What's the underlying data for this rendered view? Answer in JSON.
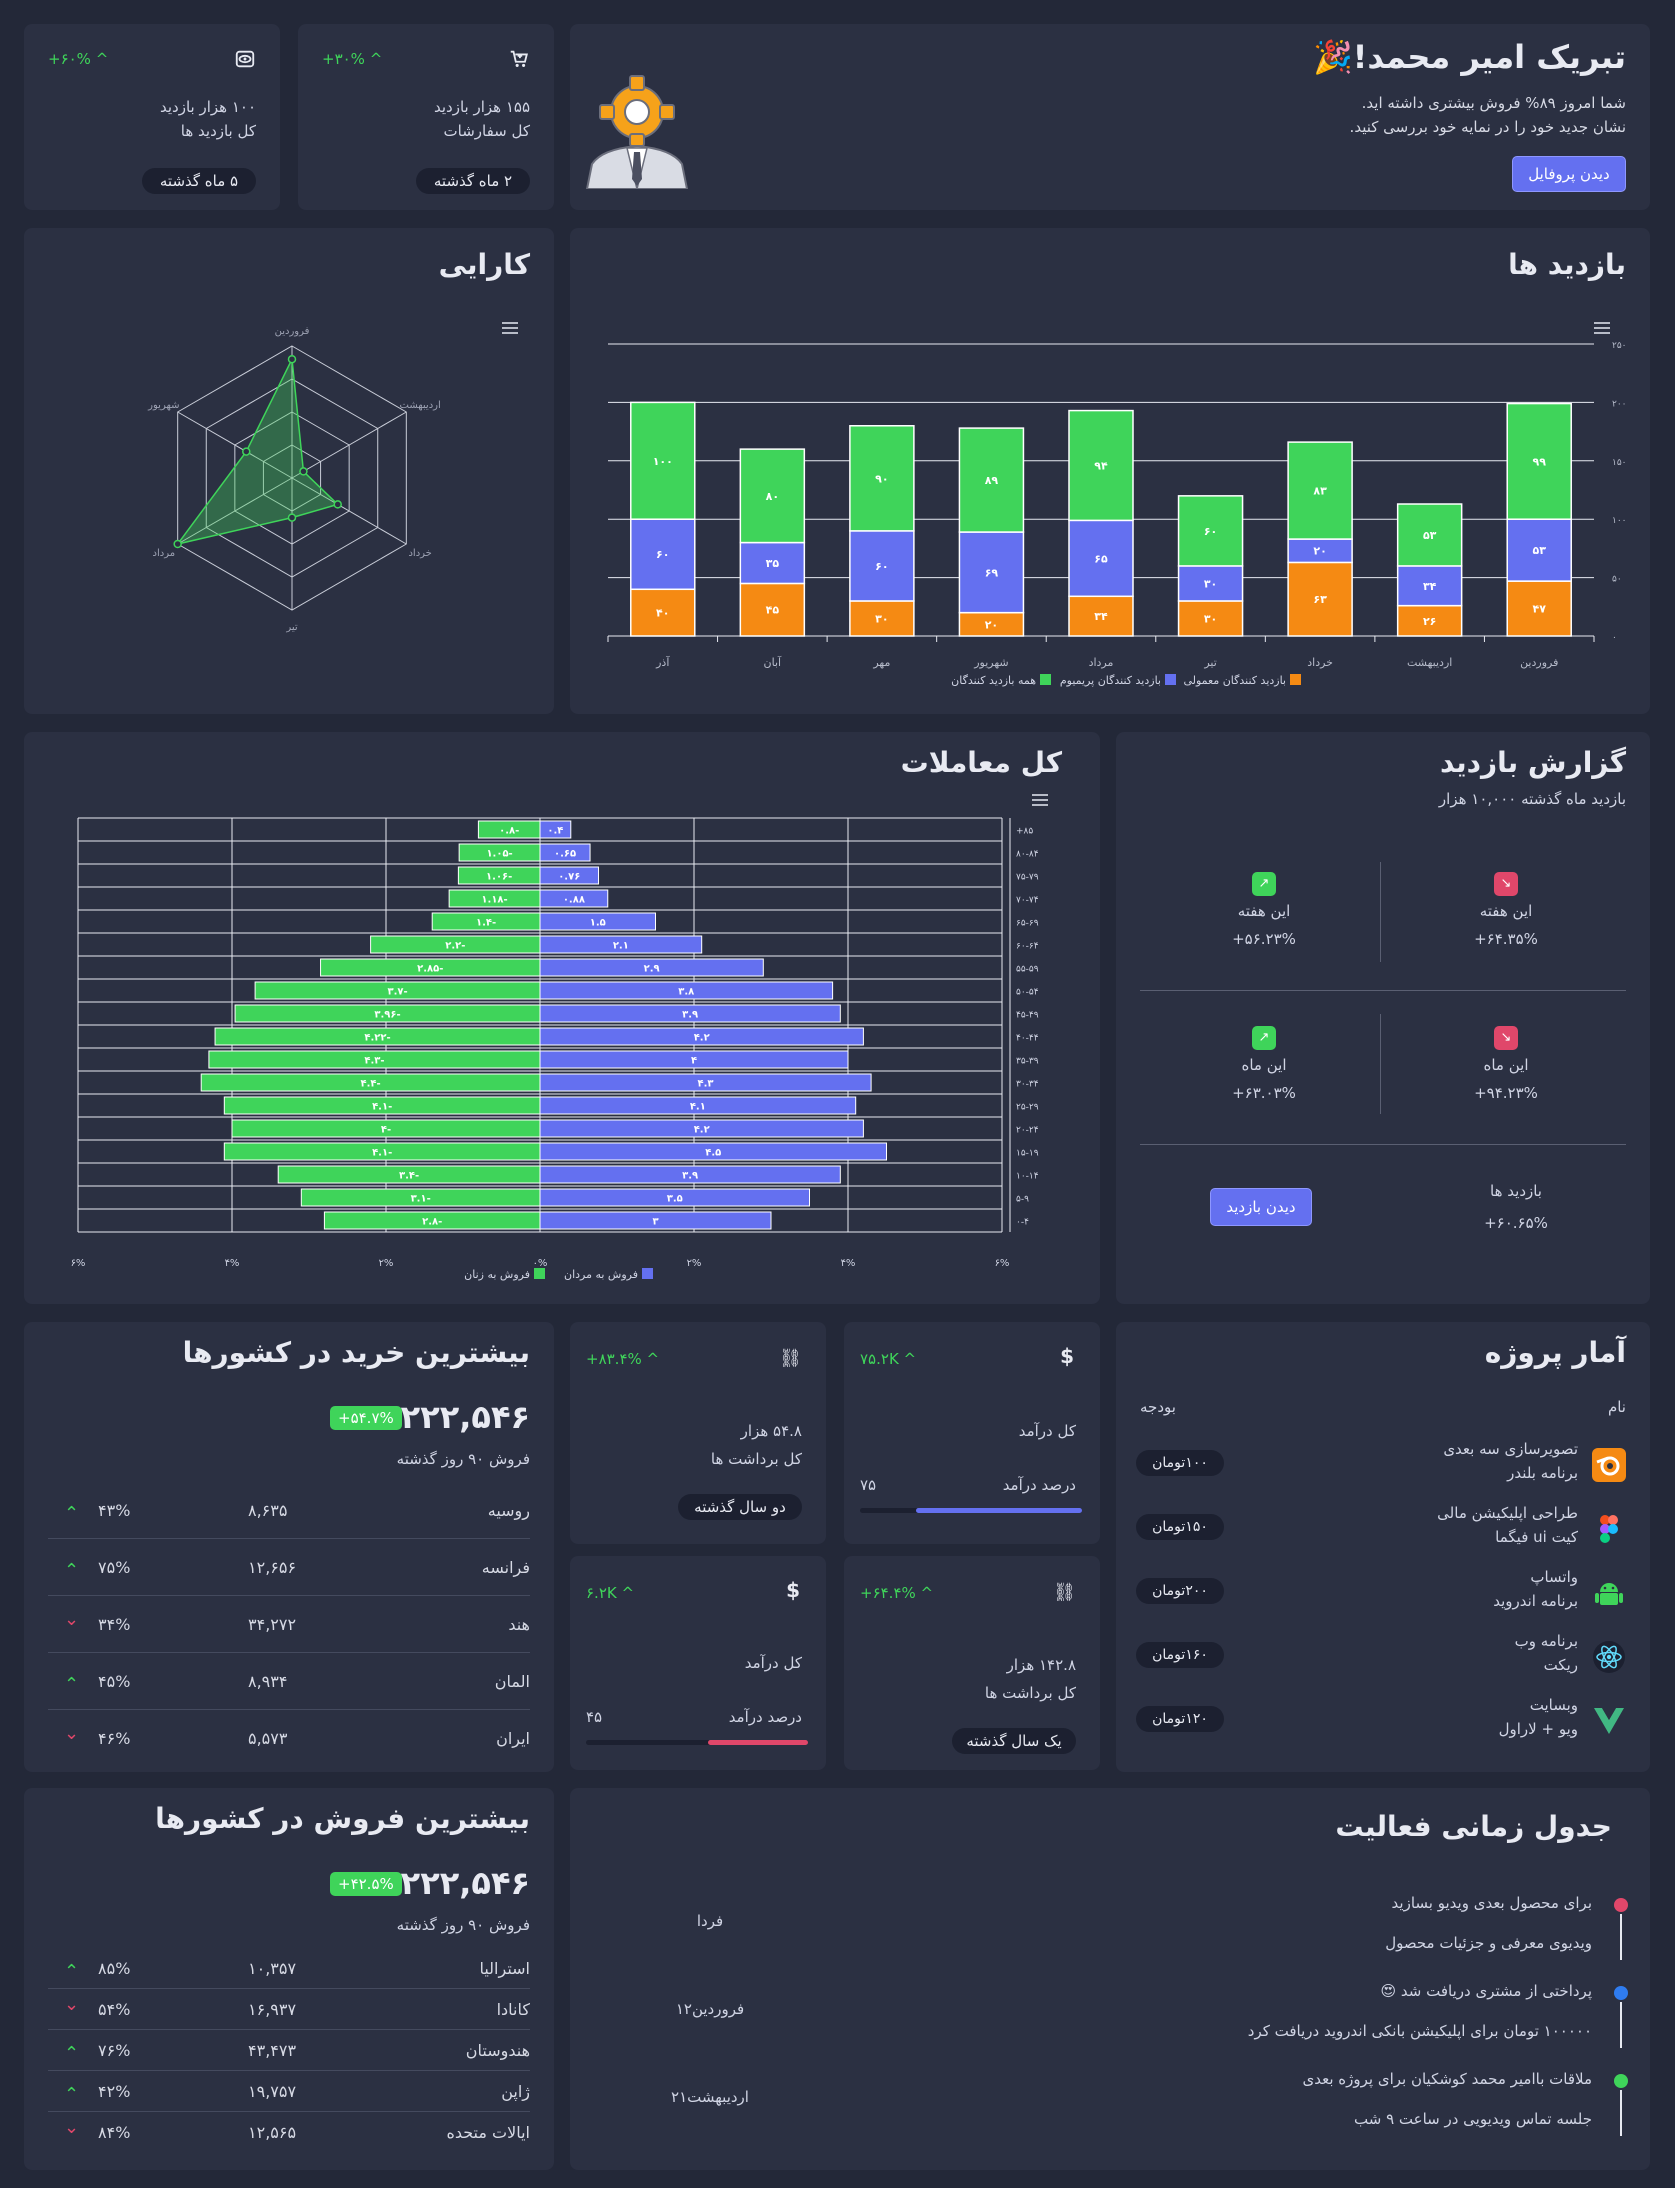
{
  "welcome": {
    "title": "تبریک امیر محمد!🎉",
    "line1": "شما امروز ۸۹% فروش بیشتری داشته اید.",
    "line2": "نشان جدید خود را در نمایه خود بررسی کنید.",
    "button": "دیدن پروفایل"
  },
  "stat_orders": {
    "change": "+۳۰% ^",
    "value": "۱۵۵ هزار بازدید",
    "label": "کل سفارشات",
    "pill": "۲ ماه گذشته",
    "icon": "cart-icon"
  },
  "stat_visits": {
    "change": "+۶۰% ^",
    "value": "۱۰۰ هزار بازدید",
    "label": "کل بازدید ها",
    "pill": "۵ ماه گذشته",
    "icon": "eye-icon"
  },
  "performance": {
    "title": "کارایی"
  },
  "visits": {
    "title": "بازدید ها"
  },
  "transactions": {
    "title": "کل معاملات"
  },
  "report": {
    "title": "گزارش بازدید",
    "subtitle": "بازدید ماه گذشته ۱۰,۰۰۰ هزار",
    "cells": [
      {
        "label": "این هفته",
        "value": "+۶۴.۳۵%",
        "trend": "down"
      },
      {
        "label": "این هفته",
        "value": "+۵۶.۲۳%",
        "trend": "up"
      },
      {
        "label": "این ماه",
        "value": "+۹۴.۲۳%",
        "trend": "down"
      },
      {
        "label": "این ماه",
        "value": "+۶۳.۰۳%",
        "trend": "up"
      }
    ],
    "bottom_label": "بازدید ها",
    "bottom_value": "+۶۰.۶۵%",
    "button": "دیدن بازدید"
  },
  "buy_countries": {
    "title": "بیشترین خرید در کشورها",
    "total": "۲۲۲,۵۴۶",
    "badge": "+۵۴.۷%",
    "period": "فروش ۹۰ روز گذشته",
    "rows": [
      {
        "country": "روسیه",
        "value": "۸,۶۳۵",
        "pct": "۴۳%",
        "trend": "up"
      },
      {
        "country": "فرانسه",
        "value": "۱۲,۶۵۶",
        "pct": "۷۵%",
        "trend": "up"
      },
      {
        "country": "هند",
        "value": "۳۴,۲۷۲",
        "pct": "۳۴%",
        "trend": "down"
      },
      {
        "country": "المان",
        "value": "۸,۹۳۴",
        "pct": "۴۵%",
        "trend": "up"
      },
      {
        "country": "ایران",
        "value": "۵,۵۷۳",
        "pct": "۴۶%",
        "trend": "down"
      }
    ]
  },
  "sell_countries": {
    "title": "بیشترین فروش در کشورها",
    "total": "۲۲۲,۵۴۶",
    "badge": "+۴۲.۵%",
    "period": "فروش ۹۰ روز گذشته",
    "rows": [
      {
        "country": "استرالیا",
        "value": "۱۰,۳۵۷",
        "pct": "۸۵%",
        "trend": "up"
      },
      {
        "country": "کانادا",
        "value": "۱۶,۹۳۷",
        "pct": "۵۴%",
        "trend": "down"
      },
      {
        "country": "هندوستان",
        "value": "۴۳,۴۷۳",
        "pct": "۷۶%",
        "trend": "up"
      },
      {
        "country": "ژاپن",
        "value": "۱۹,۷۵۷",
        "pct": "۴۲%",
        "trend": "up"
      },
      {
        "country": "ایالات متحده",
        "value": "۱۲,۵۶۵",
        "pct": "۸۴%",
        "trend": "down"
      }
    ]
  },
  "mini1": {
    "change": "+۸۳.۴% ^",
    "value": "۵۴.۸ هزار",
    "label": "کل برداشت ها",
    "pill": "دو سال گذشته",
    "icon": "link-icon"
  },
  "mini2": {
    "change": "۷۵.۲K ^",
    "label": "کل درآمد",
    "sub": "درصد درآمد",
    "pct": "۷۵",
    "fill": 0.75,
    "icon": "dollar-icon"
  },
  "mini3": {
    "change": "۶.۲K ^",
    "label": "کل درآمد",
    "sub": "درصد درآمد",
    "pct": "۴۵",
    "fill": 0.45,
    "icon": "dollar-icon"
  },
  "mini4": {
    "change": "+۶۴.۴% ^",
    "value": "۱۴۲.۸ هزار",
    "label": "کل برداشت ها",
    "pill": "یک سال گذشته",
    "icon": "link-icon"
  },
  "projects": {
    "title": "آمار پروژه",
    "col_name": "نام",
    "col_budget": "بودجه",
    "rows": [
      {
        "name": "تصویرسازی سه بعدی",
        "sub": "برنامه بلندر",
        "budget": "۱۰۰تومان",
        "icon": "blender-icon"
      },
      {
        "name": "طراحی اپلیکیشن مالی",
        "sub": "کیت ui فیگما",
        "budget": "۱۵۰تومان",
        "icon": "figma-icon"
      },
      {
        "name": "واتساپ",
        "sub": "برنامه اندروید",
        "budget": "۲۰۰تومان",
        "icon": "android-icon"
      },
      {
        "name": "برنامه وب",
        "sub": "ریکت",
        "budget": "۱۶۰تومان",
        "icon": "react-icon"
      },
      {
        "name": "وبسایت",
        "sub": "ویو + لاراول",
        "budget": "۱۲۰تومان",
        "icon": "vue-icon"
      }
    ]
  },
  "timeline": {
    "title": "جدول زمانی فعالیت",
    "items": [
      {
        "title": "برای محصول بعدی ویدیو بسازید",
        "desc": "ویدیوی معرفی و جزئیات محصول",
        "when": "فردا",
        "color": "#e0476a"
      },
      {
        "title": "پرداختی از مشتری دریافت شد 😍",
        "desc": "۱۰۰۰۰۰ تومان برای اپلیکیشن بانکی اندروید دریافت کرد",
        "when": "۱۲فروردین",
        "color": "#2f7cf0"
      },
      {
        "title": "ملاقات باامیر محمد کوشکیان برای پروژه بعدی",
        "desc": "جلسه تماس ویدیویی در ساعت ۹ شب",
        "when": "۲۱اردیبهشت",
        "color": "#3fd45a"
      }
    ]
  },
  "chart_data": [
    {
      "type": "radar",
      "name": "performance",
      "categories": [
        "فروردین",
        "اردیبهشت",
        "خرداد",
        "تیر",
        "مرداد",
        "شهریور"
      ],
      "values": [
        90,
        10,
        40,
        30,
        100,
        40
      ],
      "colors": {
        "fill": "#3fd45a"
      }
    },
    {
      "type": "bar",
      "name": "visits",
      "stacked": true,
      "categories": [
        "آذر",
        "آبان",
        "مهر",
        "شهریور",
        "مرداد",
        "تیر",
        "خرداد",
        "اردیبهشت",
        "فروردین"
      ],
      "series": [
        {
          "name": "بازدید کنندگان معمولی",
          "values": [
            40,
            45,
            30,
            20,
            34,
            30,
            63,
            26,
            47
          ],
          "color": "#f58a13"
        },
        {
          "name": "بازدید کنندگان پریمیوم",
          "values": [
            60,
            35,
            60,
            69,
            65,
            30,
            20,
            34,
            53
          ],
          "color": "#6470f0"
        },
        {
          "name": "همه بازدید کنندگان",
          "values": [
            100,
            80,
            90,
            89,
            94,
            60,
            83,
            53,
            99
          ],
          "color": "#3fd45a"
        }
      ],
      "value_labels": [
        [
          "۴۰",
          "۶۰",
          "۱۰۰"
        ],
        [
          "۴۵",
          "۳۵",
          "۸۰"
        ],
        [
          "۳۰",
          "۶۰",
          "۹۰"
        ],
        [
          "۲۰",
          "۶۹",
          "۸۹"
        ],
        [
          "۳۴",
          "۶۵",
          "۹۴"
        ],
        [
          "۳۰",
          "۳۰",
          "۶۰"
        ],
        [
          "۶۳",
          "۲۰",
          "۸۳"
        ],
        [
          "۲۶",
          "۳۴",
          "۵۳"
        ],
        [
          "۴۷",
          "۵۳",
          "۹۹"
        ]
      ],
      "ylim": [
        0,
        250
      ],
      "yticks": [
        "۰",
        "۵۰",
        "۱۰۰",
        "۱۵۰",
        "۲۰۰",
        "۲۵۰"
      ]
    },
    {
      "type": "bar",
      "name": "transactions",
      "orientation": "horizontal",
      "categories": [
        "+۸۵",
        "۸۰-۸۴",
        "۷۵-۷۹",
        "۷۰-۷۴",
        "۶۵-۶۹",
        "۶۰-۶۴",
        "۵۵-۵۹",
        "۵۰-۵۴",
        "۴۵-۴۹",
        "۴۰-۴۴",
        "۳۵-۳۹",
        "۳۰-۳۴",
        "۲۵-۲۹",
        "۲۰-۲۴",
        "۱۵-۱۹",
        "۱۰-۱۴",
        "۵-۹",
        "۰-۴"
      ],
      "series": [
        {
          "name": "فروش به زنان",
          "values": [
            -0.8,
            -1.05,
            -1.06,
            -1.18,
            -1.4,
            -2.2,
            -2.85,
            -3.7,
            -3.96,
            -4.22,
            -4.3,
            -4.4,
            -4.1,
            -4,
            -4.1,
            -3.4,
            -3.1,
            -2.8
          ],
          "color": "#3fd45a",
          "labels": [
            "۰.۸-",
            "۱.۰۵-",
            "۱.۰۶-",
            "۱.۱۸-",
            "۱.۴-",
            "۲.۲-",
            "۲.۸۵-",
            "۳.۷-",
            "۳.۹۶-",
            "۴.۲۲-",
            "۴.۳-",
            "۴.۴-",
            "۴.۱-",
            "۴-",
            "۴.۱-",
            "۳.۴-",
            "۳.۱-",
            "۲.۸-"
          ]
        },
        {
          "name": "فروش به مردان",
          "values": [
            0.4,
            0.65,
            0.76,
            0.88,
            1.5,
            2.1,
            2.9,
            3.8,
            3.9,
            4.2,
            4,
            4.3,
            4.1,
            4.2,
            4.5,
            3.9,
            3.5,
            3
          ],
          "color": "#6470f0",
          "labels": [
            "۰.۴",
            "۰.۶۵",
            "۰.۷۶",
            "۰.۸۸",
            "۱.۵",
            "۲.۱",
            "۲.۹",
            "۳.۸",
            "۳.۹",
            "۴.۲",
            "۴",
            "۴.۳",
            "۴.۱",
            "۴.۲",
            "۴.۵",
            "۳.۹",
            "۳.۵",
            "۳"
          ]
        }
      ],
      "xlim": [
        -6,
        6
      ],
      "xticks": [
        "۶%",
        "۴%",
        "۲%",
        "۰%",
        "۲%",
        "۴%",
        "۶%"
      ]
    }
  ]
}
